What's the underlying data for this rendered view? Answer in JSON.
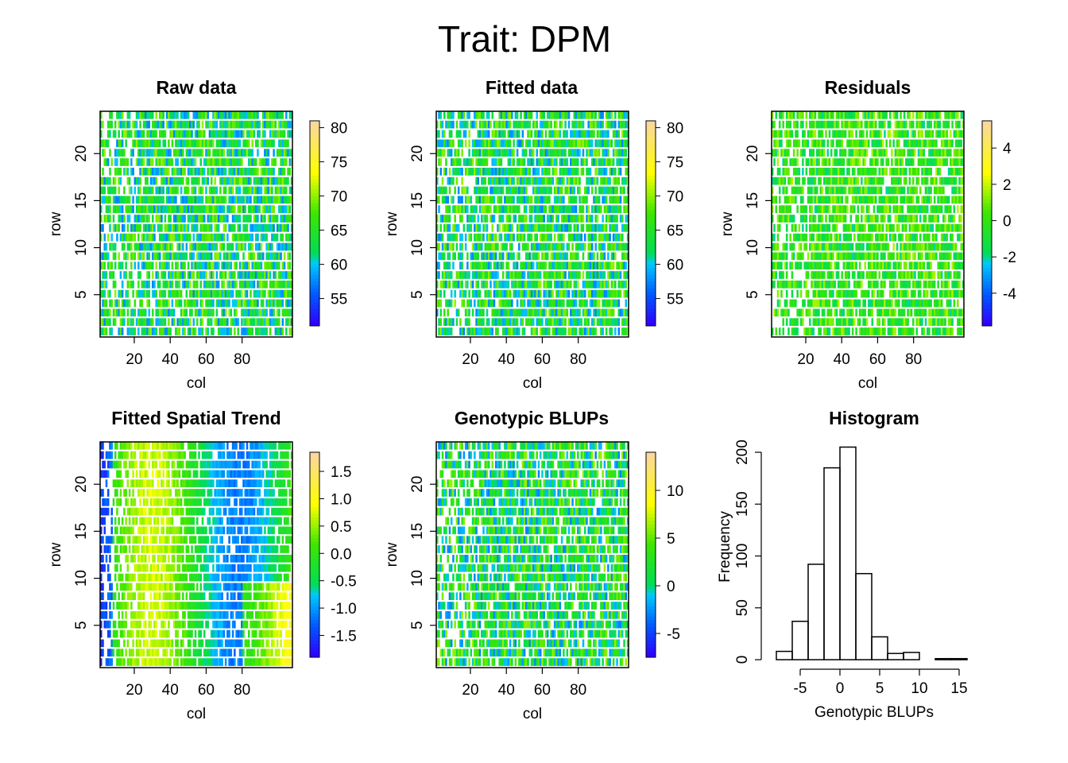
{
  "title": "Trait: DPM",
  "chart_data": [
    {
      "type": "heatmap",
      "title": "Raw data",
      "xlabel": "col",
      "ylabel": "row",
      "xlim": [
        1,
        108
      ],
      "ylim": [
        0.5,
        24.5
      ],
      "x_ticks": [
        "20",
        "40",
        "60",
        "80"
      ],
      "y_ticks": [
        "5",
        "10",
        "15",
        "20"
      ],
      "colorbar": {
        "range": [
          51,
          81
        ],
        "ticks": [
          "55",
          "60",
          "65",
          "70",
          "75",
          "80"
        ]
      }
    },
    {
      "type": "heatmap",
      "title": "Fitted data",
      "xlabel": "col",
      "ylabel": "row",
      "xlim": [
        1,
        108
      ],
      "ylim": [
        0.5,
        24.5
      ],
      "x_ticks": [
        "20",
        "40",
        "60",
        "80"
      ],
      "y_ticks": [
        "5",
        "10",
        "15",
        "20"
      ],
      "colorbar": {
        "range": [
          51,
          81
        ],
        "ticks": [
          "55",
          "60",
          "65",
          "70",
          "75",
          "80"
        ]
      }
    },
    {
      "type": "heatmap",
      "title": "Residuals",
      "xlabel": "col",
      "ylabel": "row",
      "xlim": [
        1,
        108
      ],
      "ylim": [
        0.5,
        24.5
      ],
      "x_ticks": [
        "20",
        "40",
        "60",
        "80"
      ],
      "y_ticks": [
        "5",
        "10",
        "15",
        "20"
      ],
      "colorbar": {
        "range": [
          -5.8,
          5.5
        ],
        "ticks": [
          "-4",
          "-2",
          "0",
          "2",
          "4"
        ]
      }
    },
    {
      "type": "heatmap",
      "title": "Fitted Spatial Trend",
      "xlabel": "col",
      "ylabel": "row",
      "xlim": [
        1,
        108
      ],
      "ylim": [
        0.5,
        24.5
      ],
      "x_ticks": [
        "20",
        "40",
        "60",
        "80"
      ],
      "y_ticks": [
        "5",
        "10",
        "15",
        "20"
      ],
      "colorbar": {
        "range": [
          -1.9,
          1.85
        ],
        "ticks": [
          "-1.5",
          "-1.0",
          "-0.5",
          "0.0",
          "0.5",
          "1.0",
          "1.5"
        ]
      }
    },
    {
      "type": "heatmap",
      "title": "Genotypic BLUPs",
      "xlabel": "col",
      "ylabel": "row",
      "xlim": [
        1,
        108
      ],
      "ylim": [
        0.5,
        24.5
      ],
      "x_ticks": [
        "20",
        "40",
        "60",
        "80"
      ],
      "y_ticks": [
        "5",
        "10",
        "15",
        "20"
      ],
      "colorbar": {
        "range": [
          -7.5,
          14
        ],
        "ticks": [
          "-5",
          "0",
          "5",
          "10"
        ]
      }
    },
    {
      "type": "bar",
      "title": "Histogram",
      "xlabel": "Genotypic BLUPs",
      "ylabel": "Frequency",
      "bin_edges": [
        -8,
        -6,
        -4,
        -2,
        0,
        2,
        4,
        6,
        8,
        10,
        12,
        14,
        16
      ],
      "values": [
        8,
        37,
        92,
        185,
        205,
        83,
        22,
        6,
        7,
        0,
        1,
        1
      ],
      "xlim": [
        -8.5,
        16.5
      ],
      "ylim": [
        0,
        210
      ],
      "x_ticks": [
        "-5",
        "0",
        "5",
        "10",
        "15"
      ],
      "y_ticks": [
        "0",
        "50",
        "100",
        "150",
        "200"
      ]
    }
  ]
}
